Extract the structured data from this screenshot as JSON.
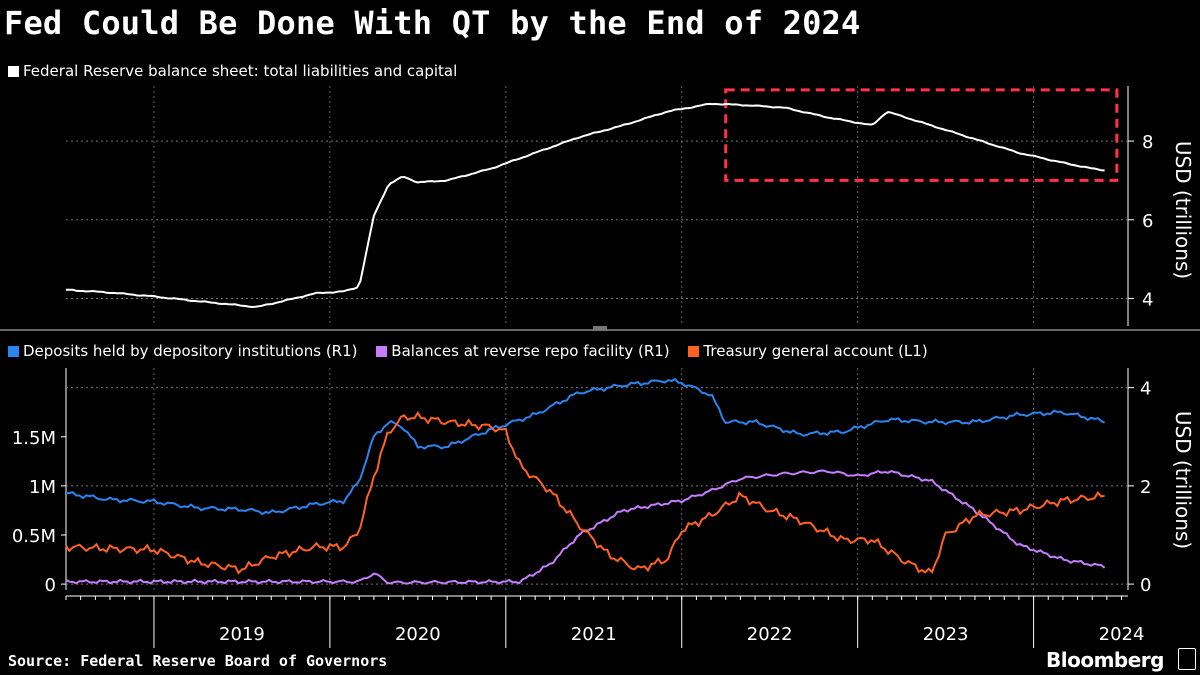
{
  "title": "Fed Could Be Done With QT by the End of 2024",
  "source": "Source: Federal Reserve Board of Governors",
  "brand": "Bloomberg",
  "colors": {
    "balance": "#ffffff",
    "deposits": "#2b84f0",
    "rrp": "#c77dff",
    "tga": "#ff6221",
    "highlight": "#ff3344"
  },
  "chart_data": [
    {
      "type": "line",
      "legend": [
        "Federal Reserve balance sheet: total liabilities and capital"
      ],
      "ylabel": "USD (trillions)",
      "yaxis_side": "right",
      "ylim": [
        3.3,
        9.4
      ],
      "yticks": [
        "4",
        "6",
        "8"
      ],
      "x_range": [
        "2018-07",
        "2024-06"
      ],
      "series": [
        {
          "name": "Federal Reserve balance sheet: total liabilities and capital",
          "points": [
            [
              "2018-07",
              4.22
            ],
            [
              "2018-10",
              4.15
            ],
            [
              "2019-01",
              4.05
            ],
            [
              "2019-04",
              3.93
            ],
            [
              "2019-07",
              3.82
            ],
            [
              "2019-08",
              3.78
            ],
            [
              "2019-10",
              3.95
            ],
            [
              "2019-12",
              4.13
            ],
            [
              "2020-02",
              4.18
            ],
            [
              "2020-03",
              4.3
            ],
            [
              "2020-04",
              6.1
            ],
            [
              "2020-05",
              6.9
            ],
            [
              "2020-06",
              7.1
            ],
            [
              "2020-07",
              6.95
            ],
            [
              "2020-09",
              7.0
            ],
            [
              "2020-12",
              7.3
            ],
            [
              "2021-03",
              7.7
            ],
            [
              "2021-06",
              8.1
            ],
            [
              "2021-09",
              8.4
            ],
            [
              "2021-12",
              8.75
            ],
            [
              "2022-03",
              8.95
            ],
            [
              "2022-05",
              8.92
            ],
            [
              "2022-08",
              8.85
            ],
            [
              "2022-11",
              8.6
            ],
            [
              "2023-02",
              8.4
            ],
            [
              "2023-03",
              8.75
            ],
            [
              "2023-06",
              8.4
            ],
            [
              "2023-09",
              8.05
            ],
            [
              "2023-12",
              7.7
            ],
            [
              "2024-03",
              7.45
            ],
            [
              "2024-05",
              7.3
            ],
            [
              "2024-06",
              7.25
            ]
          ]
        }
      ],
      "annotation": {
        "type": "box",
        "x": [
          "2022-04",
          "2024-06"
        ],
        "y": [
          7.0,
          9.3
        ]
      }
    },
    {
      "type": "line",
      "legend": [
        "Deposits held by depository institutions (R1)",
        "Balances at reverse repo facility (R1)",
        "Treasury general account  (L1)"
      ],
      "yleft_ticks": [
        "0",
        "0.5M",
        "1M",
        "1.5M"
      ],
      "yleft_lim": [
        -0.06,
        2.2
      ],
      "yright_label": "USD (trillions)",
      "yright_ticks": [
        "0",
        "2",
        "4"
      ],
      "yright_lim": [
        -0.12,
        4.4
      ],
      "xticks": [
        "2019",
        "2020",
        "2021",
        "2022",
        "2023",
        "2024"
      ],
      "x_range": [
        "2018-07",
        "2024-06"
      ],
      "series": [
        {
          "name": "Deposits held by depository institutions (R1)",
          "axis": "right",
          "points": [
            [
              "2018-07",
              1.85
            ],
            [
              "2018-10",
              1.72
            ],
            [
              "2019-01",
              1.68
            ],
            [
              "2019-04",
              1.55
            ],
            [
              "2019-07",
              1.52
            ],
            [
              "2019-09",
              1.45
            ],
            [
              "2019-12",
              1.63
            ],
            [
              "2020-02",
              1.7
            ],
            [
              "2020-03",
              2.1
            ],
            [
              "2020-04",
              3.0
            ],
            [
              "2020-05",
              3.3
            ],
            [
              "2020-06",
              3.2
            ],
            [
              "2020-07",
              2.8
            ],
            [
              "2020-09",
              2.8
            ],
            [
              "2020-12",
              3.15
            ],
            [
              "2021-03",
              3.45
            ],
            [
              "2021-06",
              3.9
            ],
            [
              "2021-09",
              4.05
            ],
            [
              "2021-12",
              4.15
            ],
            [
              "2022-01",
              4.1
            ],
            [
              "2022-03",
              3.85
            ],
            [
              "2022-04",
              3.3
            ],
            [
              "2022-06",
              3.3
            ],
            [
              "2022-09",
              3.05
            ],
            [
              "2022-12",
              3.1
            ],
            [
              "2023-03",
              3.35
            ],
            [
              "2023-06",
              3.3
            ],
            [
              "2023-09",
              3.3
            ],
            [
              "2023-12",
              3.45
            ],
            [
              "2024-03",
              3.5
            ],
            [
              "2024-06",
              3.3
            ]
          ]
        },
        {
          "name": "Balances at reverse repo facility (R1)",
          "axis": "right",
          "points": [
            [
              "2018-07",
              0.05
            ],
            [
              "2020-03",
              0.05
            ],
            [
              "2020-04",
              0.22
            ],
            [
              "2020-05",
              0.03
            ],
            [
              "2021-02",
              0.05
            ],
            [
              "2021-04",
              0.4
            ],
            [
              "2021-06",
              1.0
            ],
            [
              "2021-09",
              1.5
            ],
            [
              "2021-11",
              1.6
            ],
            [
              "2022-01",
              1.7
            ],
            [
              "2022-03",
              1.9
            ],
            [
              "2022-05",
              2.15
            ],
            [
              "2022-08",
              2.25
            ],
            [
              "2022-11",
              2.3
            ],
            [
              "2023-01",
              2.2
            ],
            [
              "2023-03",
              2.3
            ],
            [
              "2023-06",
              2.1
            ],
            [
              "2023-09",
              1.5
            ],
            [
              "2023-12",
              0.8
            ],
            [
              "2024-03",
              0.5
            ],
            [
              "2024-06",
              0.35
            ]
          ]
        },
        {
          "name": "Treasury general account  (L1)",
          "axis": "left",
          "points": [
            [
              "2018-07",
              0.38
            ],
            [
              "2018-10",
              0.36
            ],
            [
              "2019-01",
              0.35
            ],
            [
              "2019-04",
              0.22
            ],
            [
              "2019-07",
              0.15
            ],
            [
              "2019-09",
              0.28
            ],
            [
              "2019-12",
              0.38
            ],
            [
              "2020-02",
              0.38
            ],
            [
              "2020-03",
              0.55
            ],
            [
              "2020-04",
              1.1
            ],
            [
              "2020-05",
              1.55
            ],
            [
              "2020-06",
              1.7
            ],
            [
              "2020-07",
              1.7
            ],
            [
              "2020-09",
              1.65
            ],
            [
              "2020-12",
              1.6
            ],
            [
              "2021-01",
              1.55
            ],
            [
              "2021-02",
              1.2
            ],
            [
              "2021-04",
              0.95
            ],
            [
              "2021-06",
              0.6
            ],
            [
              "2021-08",
              0.3
            ],
            [
              "2021-10",
              0.15
            ],
            [
              "2021-12",
              0.25
            ],
            [
              "2022-01",
              0.55
            ],
            [
              "2022-03",
              0.7
            ],
            [
              "2022-05",
              0.9
            ],
            [
              "2022-07",
              0.75
            ],
            [
              "2022-09",
              0.65
            ],
            [
              "2022-12",
              0.45
            ],
            [
              "2023-02",
              0.45
            ],
            [
              "2023-04",
              0.25
            ],
            [
              "2023-06",
              0.1
            ],
            [
              "2023-07",
              0.5
            ],
            [
              "2023-09",
              0.7
            ],
            [
              "2023-12",
              0.75
            ],
            [
              "2024-03",
              0.85
            ],
            [
              "2024-06",
              0.9
            ]
          ]
        }
      ]
    }
  ]
}
